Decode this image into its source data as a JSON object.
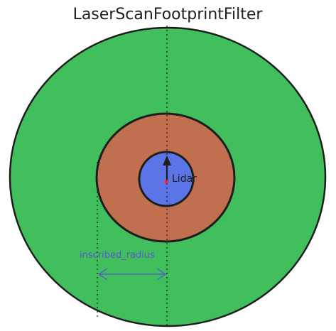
{
  "diagram": {
    "title": "LaserScanFootprintFilter",
    "lidar_label": "Lidar",
    "radius_label": "inscribed_radius"
  },
  "colors": {
    "outer_zone": "#40bf5c",
    "footprint_zone": "#c1704f",
    "robot_body": "#5b74e6",
    "outline": "#1e1e1e",
    "lidar_origin": "#e03131",
    "dimension": "#5b57d1",
    "background": "#ffffff"
  },
  "icons": {
    "heading_marker": "up-arrow-icon",
    "lidar_origin": "dot-icon"
  }
}
